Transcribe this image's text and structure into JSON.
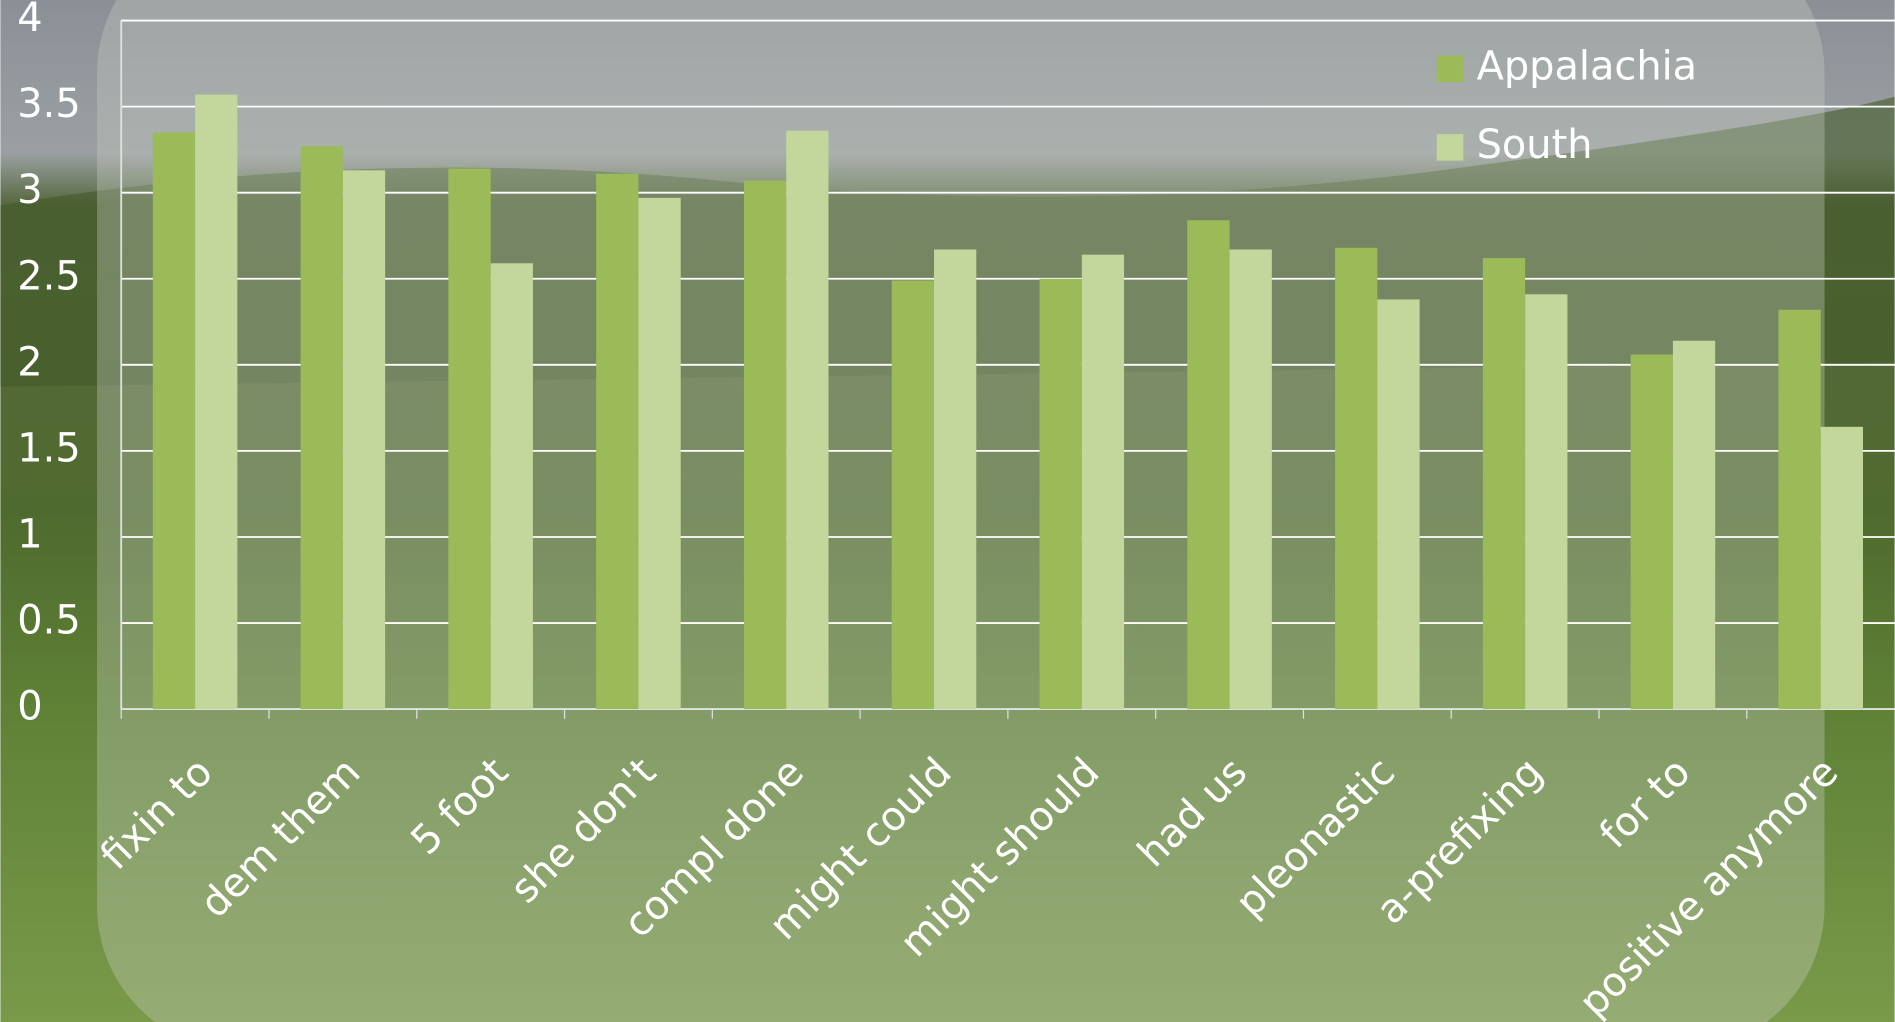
{
  "chart_data": {
    "type": "bar",
    "categories": [
      "fixin to",
      "dem them",
      "5 foot",
      "she don't",
      "compl done",
      "might could",
      "might should",
      "had us",
      "pleonastic",
      "a-prefixing",
      "for to",
      "positive anymore"
    ],
    "series": [
      {
        "name": "Appalachia",
        "color": "#9bbb59",
        "values": [
          3.35,
          3.27,
          3.14,
          3.11,
          3.07,
          2.49,
          2.5,
          2.84,
          2.68,
          2.62,
          2.06,
          2.32
        ]
      },
      {
        "name": "South",
        "color": "#c3d69b",
        "values": [
          3.57,
          3.13,
          2.59,
          2.97,
          3.36,
          2.67,
          2.64,
          2.67,
          2.38,
          2.41,
          2.14,
          1.64
        ]
      }
    ],
    "ylim": [
      0,
      4
    ],
    "yticks": [
      0,
      0.5,
      1,
      1.5,
      2,
      2.5,
      3,
      3.5,
      4
    ],
    "grid": true,
    "legend": "top-right"
  }
}
